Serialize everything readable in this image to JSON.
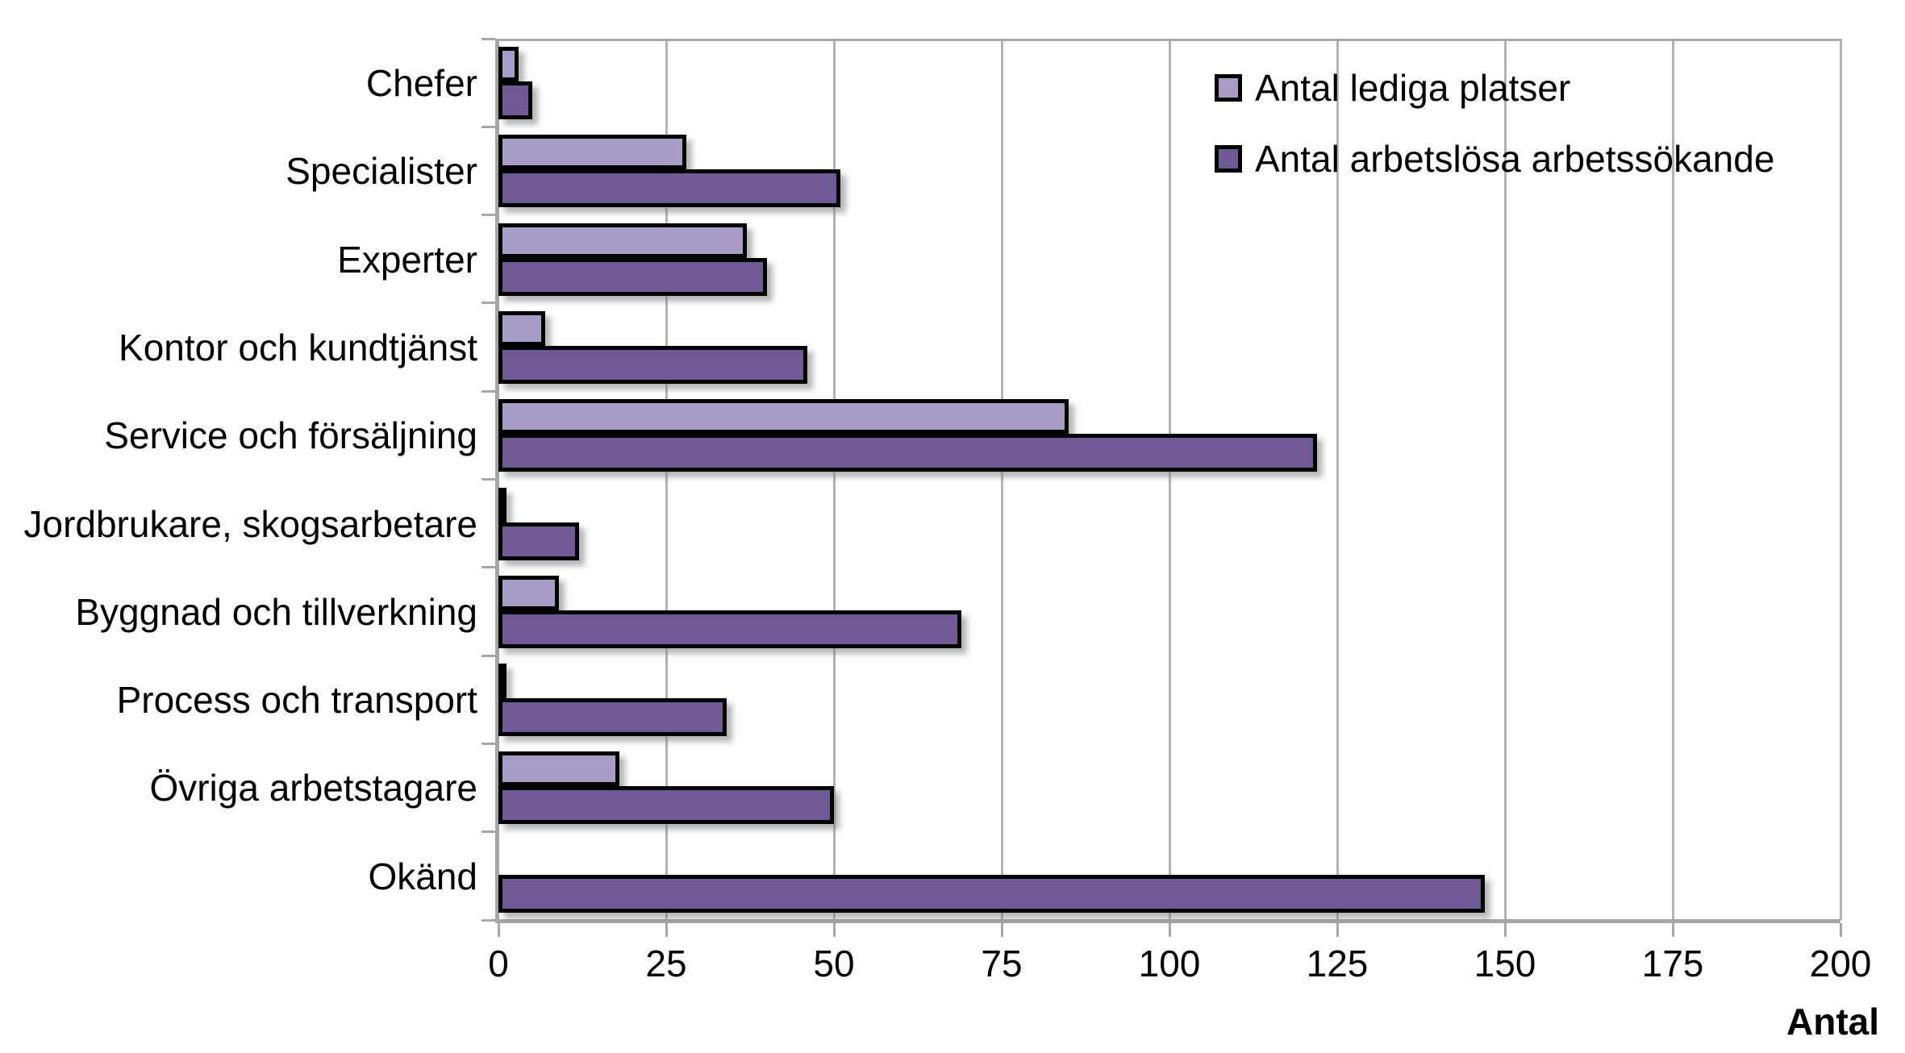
{
  "chart_data": {
    "type": "bar",
    "orientation": "horizontal",
    "title": "",
    "xlabel": "Antal",
    "ylabel": "",
    "xlim": [
      0,
      200
    ],
    "xticks": [
      0,
      25,
      50,
      75,
      100,
      125,
      150,
      175,
      200
    ],
    "grid": true,
    "legend_position": "top-right",
    "categories": [
      "Chefer",
      "Specialister",
      "Experter",
      "Kontor och kundtjänst",
      "Service och försäljning",
      "Jordbrukare, skogsarbetare",
      "Byggnad och tillverkning",
      "Process och transport",
      "Övriga arbetstagare",
      "Okänd"
    ],
    "series": [
      {
        "name": "Antal lediga platser",
        "color": "#a99cc6",
        "border_color": "#000000",
        "values": [
          3,
          28,
          37,
          7,
          85,
          1,
          9,
          1,
          18,
          0
        ]
      },
      {
        "name": "Antal arbetslösa arbetssökande",
        "color": "#6f5a96",
        "border_color": "#000000",
        "values": [
          5,
          51,
          40,
          46,
          122,
          12,
          69,
          34,
          50,
          147
        ]
      }
    ],
    "colors": {
      "gridline": "#b3b3b3",
      "axis": "#a6a6a6",
      "text": "#000000",
      "background": "#ffffff"
    }
  }
}
